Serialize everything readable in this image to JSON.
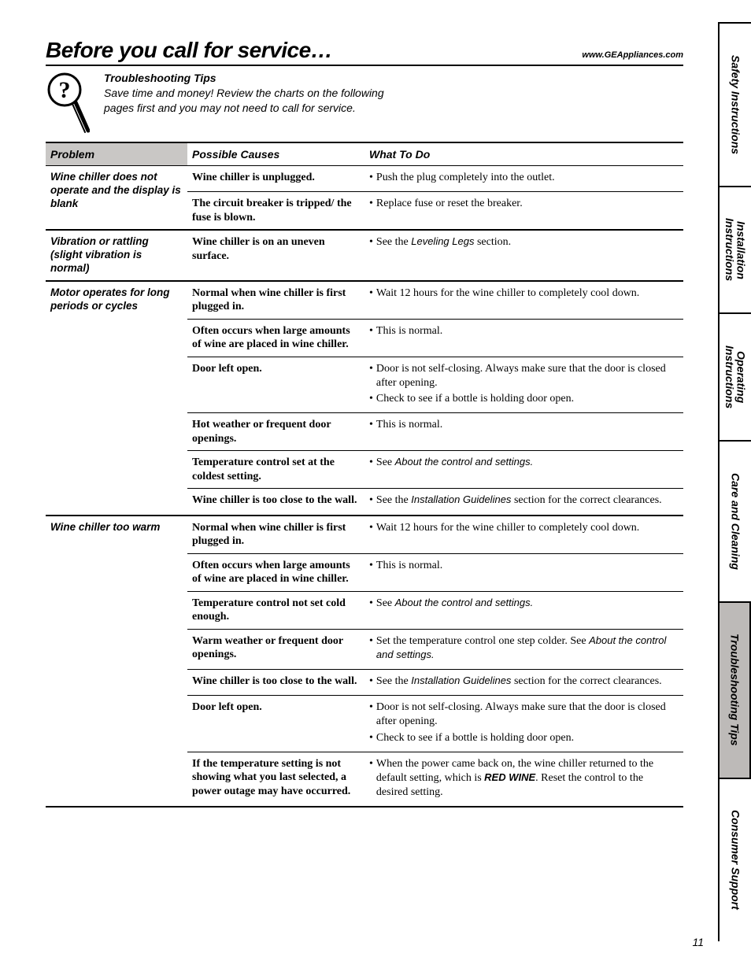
{
  "header": {
    "title": "Before you call for service…",
    "url": "www.GEAppliances.com"
  },
  "tips": {
    "heading": "Troubleshooting Tips",
    "line1": "Save time and money! Review the charts on the following",
    "line2": "pages first and you may not need to call for service."
  },
  "columns": {
    "problem": "Problem",
    "cause": "Possible Causes",
    "todo": "What To Do"
  },
  "rows": [
    {
      "section_end": false,
      "problem": "Wine chiller does not operate and the display is blank",
      "problem_rowspan": 2,
      "cause": "Wine chiller is unplugged.",
      "todo": [
        {
          "pre": "Push the plug completely into the outlet."
        }
      ]
    },
    {
      "section_end": true,
      "cause": "The circuit breaker is tripped/ the fuse is blown.",
      "todo": [
        {
          "pre": "Replace fuse or reset the breaker."
        }
      ]
    },
    {
      "section_end": true,
      "problem": "Vibration or rattling (slight vibration is normal)",
      "cause": "Wine chiller is on an uneven surface.",
      "todo": [
        {
          "pre": "See the ",
          "ital": "Leveling Legs",
          "post": " section."
        }
      ]
    },
    {
      "section_end": false,
      "problem": "Motor operates for long periods or cycles",
      "problem_rowspan": 6,
      "cause": "Normal when wine chiller is first plugged in.",
      "todo": [
        {
          "pre": "Wait 12 hours for the wine chiller to completely cool down."
        }
      ]
    },
    {
      "section_end": false,
      "cause": "Often occurs when large amounts of wine are placed in wine chiller.",
      "todo": [
        {
          "pre": "This is normal."
        }
      ]
    },
    {
      "section_end": false,
      "cause": "Door left open.",
      "todo": [
        {
          "pre": "Door is not self-closing. Always make sure that the door is closed after opening."
        },
        {
          "pre": "Check to see if a bottle is holding door open."
        }
      ]
    },
    {
      "section_end": false,
      "cause": "Hot weather or frequent door openings.",
      "todo": [
        {
          "pre": "This is normal."
        }
      ]
    },
    {
      "section_end": false,
      "cause": "Temperature control set at the coldest setting.",
      "todo": [
        {
          "pre": "See ",
          "ital": "About the control and settings."
        }
      ]
    },
    {
      "section_end": true,
      "cause": "Wine chiller is too close to the wall.",
      "todo": [
        {
          "pre": "See the ",
          "ital": "Installation Guidelines",
          "post": " section for the correct clearances."
        }
      ]
    },
    {
      "section_end": false,
      "problem": "Wine chiller too warm",
      "problem_rowspan": 7,
      "cause": "Normal when wine chiller is first plugged in.",
      "todo": [
        {
          "pre": "Wait 12 hours for the wine chiller to completely cool down."
        }
      ]
    },
    {
      "section_end": false,
      "cause": "Often occurs when large amounts of wine are placed in wine chiller.",
      "todo": [
        {
          "pre": "This is normal."
        }
      ]
    },
    {
      "section_end": false,
      "cause": "Temperature control not set cold enough.",
      "todo": [
        {
          "pre": "See ",
          "ital": "About the control and settings."
        }
      ]
    },
    {
      "section_end": false,
      "cause": "Warm weather or frequent door openings.",
      "todo": [
        {
          "pre": "Set the temperature control one step colder. See ",
          "ital": "About the control and settings."
        }
      ]
    },
    {
      "section_end": false,
      "cause": "Wine chiller is too close to the wall.",
      "todo": [
        {
          "pre": "See the ",
          "ital": "Installation Guidelines",
          "post": " section for the correct clearances."
        }
      ]
    },
    {
      "section_end": false,
      "cause": "Door left open.",
      "todo": [
        {
          "pre": "Door is not self-closing. Always make sure that the door is closed after opening."
        },
        {
          "pre": "Check to see if a bottle is holding door open."
        }
      ]
    },
    {
      "section_end": true,
      "cause": "If the temperature setting is not showing what you last selected, a power outage may have occurred.",
      "todo": [
        {
          "pre": "When the power came back on, the wine chiller returned to the default setting, which is ",
          "bold": "RED WINE",
          "post": ". Reset the control to the desired setting."
        }
      ]
    }
  ],
  "tabs": [
    {
      "label": "Safety Instructions",
      "active": false
    },
    {
      "label": "Installation\nInstructions",
      "active": false
    },
    {
      "label": "Operating\nInstructions",
      "active": false
    },
    {
      "label": "Care and Cleaning",
      "active": false
    },
    {
      "label": "Troubleshooting Tips",
      "active": true
    },
    {
      "label": "Consumer Support",
      "active": false
    }
  ],
  "page_number": "11",
  "colors": {
    "header_gray": "#c9c7c5",
    "tab_gray": "#bdbab8",
    "text": "#000000",
    "background": "#ffffff"
  }
}
